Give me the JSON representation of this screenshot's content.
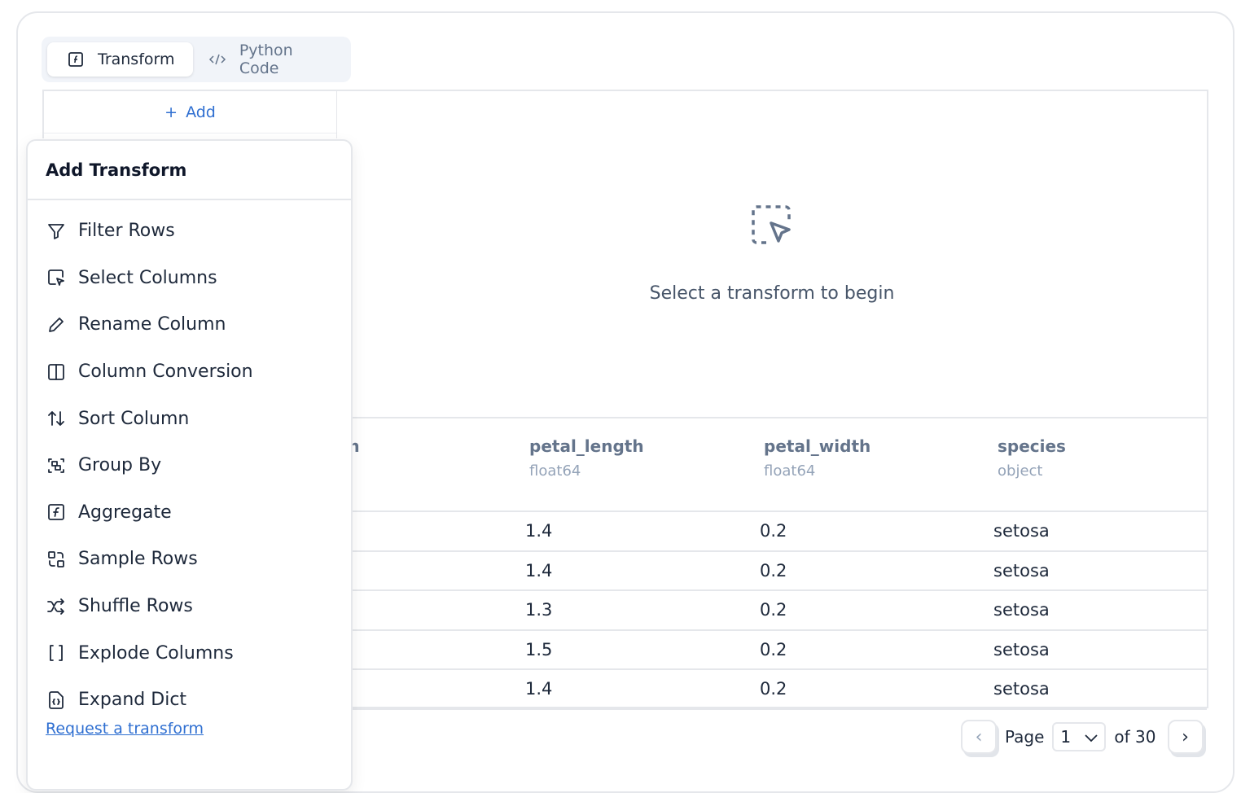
{
  "tabs": [
    {
      "label": "Transform",
      "icon": "function-square-icon",
      "active": true
    },
    {
      "label": "Python Code",
      "icon": "code-icon",
      "active": false
    }
  ],
  "add_button": "Add",
  "empty_state": {
    "icon": "dashed-pointer-icon",
    "message": "Select a transform to begin"
  },
  "table": {
    "columns": [
      {
        "name": "sepal_width",
        "dtype": ""
      },
      {
        "name": "petal_length",
        "dtype": "float64"
      },
      {
        "name": "petal_width",
        "dtype": "float64"
      },
      {
        "name": "species",
        "dtype": "object"
      }
    ],
    "rows": [
      [
        "",
        "1.4",
        "0.2",
        "setosa"
      ],
      [
        "",
        "1.4",
        "0.2",
        "setosa"
      ],
      [
        "",
        "1.3",
        "0.2",
        "setosa"
      ],
      [
        "",
        "1.5",
        "0.2",
        "setosa"
      ],
      [
        "",
        "1.4",
        "0.2",
        "setosa"
      ]
    ]
  },
  "dropdown": {
    "title": "Add Transform",
    "items": [
      {
        "label": "Filter Rows",
        "icon": "filter-icon"
      },
      {
        "label": "Select Columns",
        "icon": "select-columns-icon"
      },
      {
        "label": "Rename Column",
        "icon": "pencil-icon"
      },
      {
        "label": "Column Conversion",
        "icon": "columns-icon"
      },
      {
        "label": "Sort Column",
        "icon": "sort-arrows-icon"
      },
      {
        "label": "Group By",
        "icon": "group-icon"
      },
      {
        "label": "Aggregate",
        "icon": "function-square-icon"
      },
      {
        "label": "Sample Rows",
        "icon": "sample-icon"
      },
      {
        "label": "Shuffle Rows",
        "icon": "shuffle-icon"
      },
      {
        "label": "Explode Columns",
        "icon": "brackets-icon"
      },
      {
        "label": "Expand Dict",
        "icon": "file-braces-icon"
      }
    ],
    "request_link": "Request a transform"
  },
  "pagination": {
    "page_label": "Page",
    "current_page": "1",
    "of_label": "of 30"
  }
}
